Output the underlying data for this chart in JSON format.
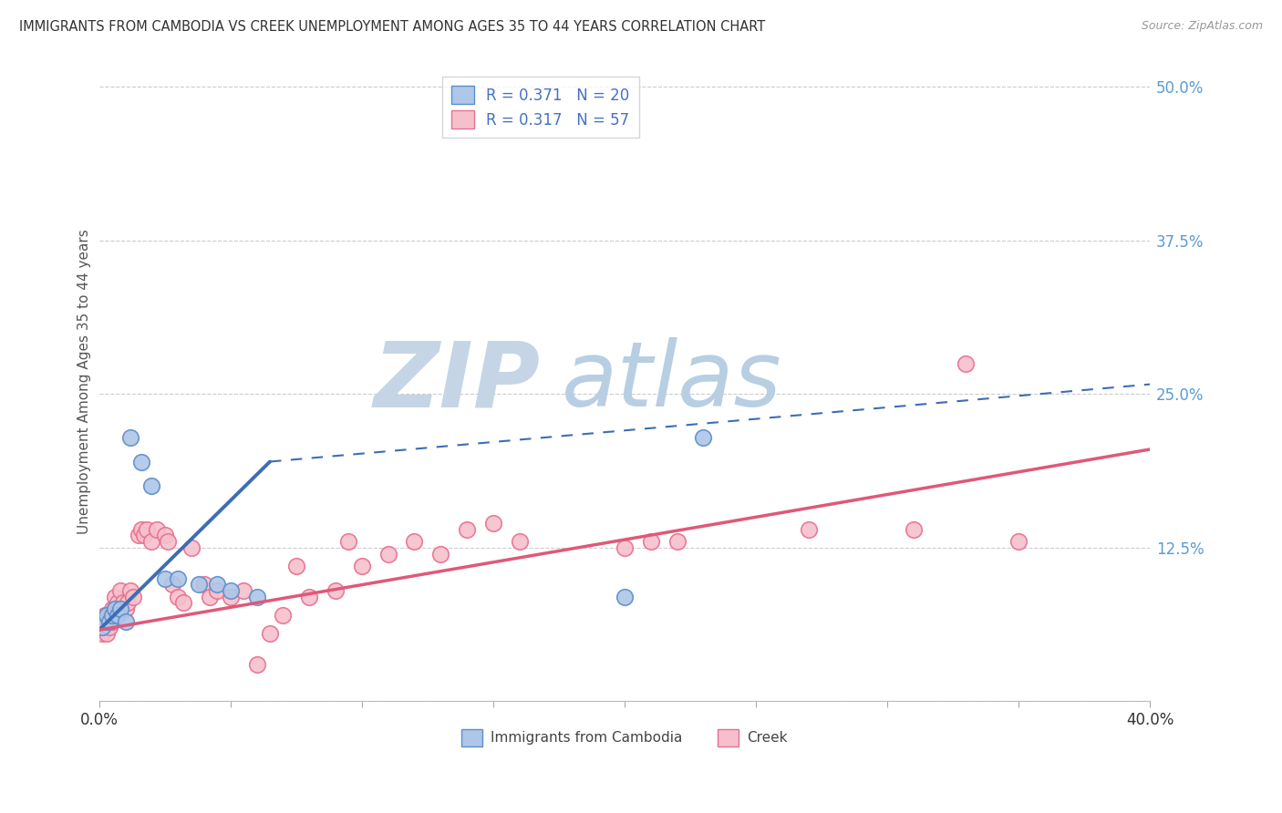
{
  "title": "IMMIGRANTS FROM CAMBODIA VS CREEK UNEMPLOYMENT AMONG AGES 35 TO 44 YEARS CORRELATION CHART",
  "source": "Source: ZipAtlas.com",
  "ylabel": "Unemployment Among Ages 35 to 44 years",
  "xlim": [
    0.0,
    0.4
  ],
  "ylim": [
    0.0,
    0.52
  ],
  "ytick_vals": [
    0.0,
    0.125,
    0.25,
    0.375,
    0.5
  ],
  "ytick_labels": [
    "",
    "12.5%",
    "25.0%",
    "37.5%",
    "50.0%"
  ],
  "grid_color": "#cccccc",
  "background_color": "#ffffff",
  "series1_name": "Immigrants from Cambodia",
  "series1_color": "#aec6e8",
  "series1_edge_color": "#5b8fc9",
  "series1_line_color": "#3d6db5",
  "series1_R": "0.371",
  "series1_N": "20",
  "series2_name": "Creek",
  "series2_color": "#f5c0cc",
  "series2_edge_color": "#e87090",
  "series2_line_color": "#e05878",
  "series2_R": "0.317",
  "series2_N": "57",
  "watermark_zip_color": "#c8d8e8",
  "watermark_atlas_color": "#b0cce0",
  "legend_label_color": "#4472c4",
  "series1_x": [
    0.001,
    0.002,
    0.003,
    0.004,
    0.005,
    0.006,
    0.007,
    0.008,
    0.01,
    0.012,
    0.016,
    0.02,
    0.025,
    0.03,
    0.038,
    0.045,
    0.05,
    0.06,
    0.2,
    0.23
  ],
  "series1_y": [
    0.06,
    0.065,
    0.07,
    0.065,
    0.07,
    0.075,
    0.07,
    0.075,
    0.065,
    0.215,
    0.195,
    0.175,
    0.1,
    0.1,
    0.095,
    0.095,
    0.09,
    0.085,
    0.085,
    0.215
  ],
  "series2_x": [
    0.001,
    0.001,
    0.002,
    0.002,
    0.003,
    0.003,
    0.004,
    0.004,
    0.005,
    0.005,
    0.006,
    0.006,
    0.007,
    0.008,
    0.009,
    0.01,
    0.011,
    0.012,
    0.013,
    0.015,
    0.016,
    0.017,
    0.018,
    0.02,
    0.022,
    0.025,
    0.026,
    0.028,
    0.03,
    0.032,
    0.035,
    0.04,
    0.042,
    0.045,
    0.05,
    0.055,
    0.06,
    0.065,
    0.07,
    0.075,
    0.08,
    0.09,
    0.095,
    0.1,
    0.11,
    0.12,
    0.13,
    0.14,
    0.15,
    0.16,
    0.2,
    0.21,
    0.22,
    0.27,
    0.31,
    0.33,
    0.35
  ],
  "series2_y": [
    0.065,
    0.055,
    0.07,
    0.06,
    0.065,
    0.055,
    0.07,
    0.06,
    0.075,
    0.065,
    0.085,
    0.075,
    0.08,
    0.09,
    0.08,
    0.075,
    0.08,
    0.09,
    0.085,
    0.135,
    0.14,
    0.135,
    0.14,
    0.13,
    0.14,
    0.135,
    0.13,
    0.095,
    0.085,
    0.08,
    0.125,
    0.095,
    0.085,
    0.09,
    0.085,
    0.09,
    0.03,
    0.055,
    0.07,
    0.11,
    0.085,
    0.09,
    0.13,
    0.11,
    0.12,
    0.13,
    0.12,
    0.14,
    0.145,
    0.13,
    0.125,
    0.13,
    0.13,
    0.14,
    0.14,
    0.275,
    0.13
  ],
  "s1_trend_x0": 0.0,
  "s1_trend_y0": 0.058,
  "s1_trend_x1": 0.065,
  "s1_trend_y1": 0.195,
  "s1_trend_dash_x0": 0.065,
  "s1_trend_dash_y0": 0.195,
  "s1_trend_dash_x1": 0.4,
  "s1_trend_dash_y1": 0.258,
  "s2_trend_x0": 0.0,
  "s2_trend_y0": 0.058,
  "s2_trend_x1": 0.4,
  "s2_trend_y1": 0.205
}
